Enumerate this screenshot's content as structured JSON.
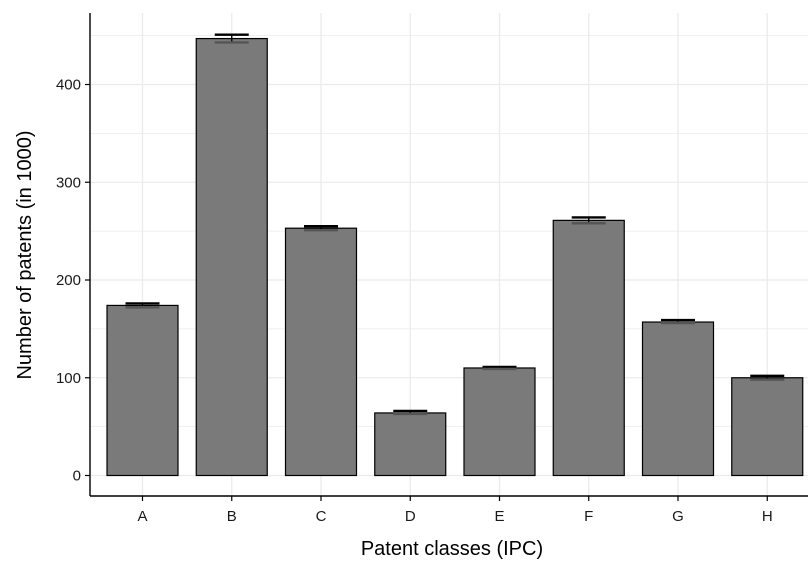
{
  "chart_data": {
    "type": "bar",
    "categories": [
      "A",
      "B",
      "C",
      "D",
      "E",
      "F",
      "G",
      "H"
    ],
    "values": [
      174,
      447,
      253,
      64,
      110,
      261,
      157,
      100
    ],
    "error_bars": [
      {
        "low": 172,
        "high": 176
      },
      {
        "low": 443,
        "high": 451
      },
      {
        "low": 251,
        "high": 255
      },
      {
        "low": 63,
        "high": 66
      },
      {
        "low": 109,
        "high": 111
      },
      {
        "low": 258,
        "high": 264
      },
      {
        "low": 156,
        "high": 159
      },
      {
        "low": 98,
        "high": 102
      }
    ],
    "xlabel": "Patent classes (IPC)",
    "ylabel": "Number of patents (in 1000)",
    "ylim": [
      -14,
      470
    ],
    "yticks": [
      0,
      100,
      200,
      300,
      400
    ],
    "grid": true,
    "colors": {
      "bar": "#7a7a7a",
      "bar_stroke": "#000000",
      "grid": "#ebebeb",
      "error_bar": "#000000"
    }
  }
}
